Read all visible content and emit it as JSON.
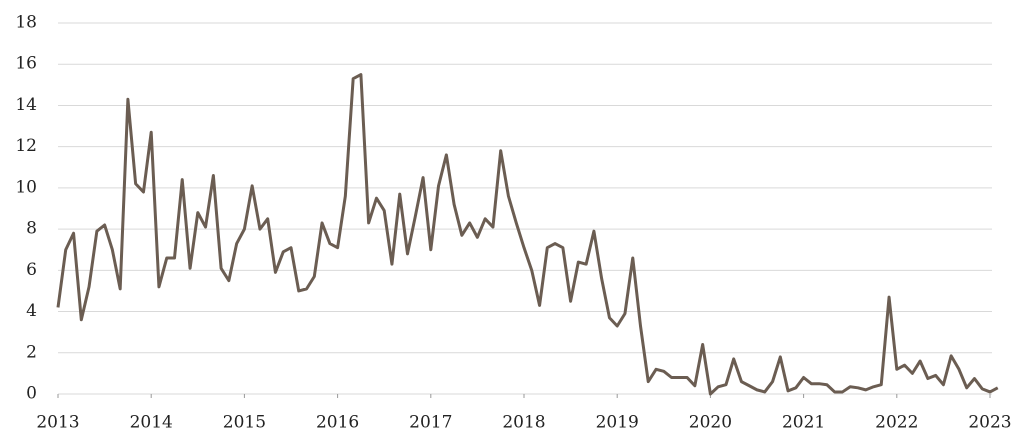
{
  "chart_data": {
    "type": "line",
    "x": [
      2013,
      2013.083,
      2013.167,
      2013.25,
      2013.333,
      2013.417,
      2013.5,
      2013.583,
      2013.667,
      2013.75,
      2013.833,
      2013.917,
      2014,
      2014.083,
      2014.167,
      2014.25,
      2014.333,
      2014.417,
      2014.5,
      2014.583,
      2014.667,
      2014.75,
      2014.833,
      2014.917,
      2015,
      2015.083,
      2015.167,
      2015.25,
      2015.333,
      2015.417,
      2015.5,
      2015.583,
      2015.667,
      2015.75,
      2015.833,
      2015.917,
      2016,
      2016.083,
      2016.167,
      2016.25,
      2016.333,
      2016.417,
      2016.5,
      2016.583,
      2016.667,
      2016.75,
      2016.833,
      2016.917,
      2017,
      2017.083,
      2017.167,
      2017.25,
      2017.333,
      2017.417,
      2017.5,
      2017.583,
      2017.667,
      2017.75,
      2017.833,
      2017.917,
      2018,
      2018.083,
      2018.167,
      2018.25,
      2018.333,
      2018.417,
      2018.5,
      2018.583,
      2018.667,
      2018.75,
      2018.833,
      2018.917,
      2019,
      2019.083,
      2019.167,
      2019.25,
      2019.333,
      2019.417,
      2019.5,
      2019.583,
      2019.667,
      2019.75,
      2019.833,
      2019.917,
      2020,
      2020.083,
      2020.167,
      2020.25,
      2020.333,
      2020.417,
      2020.5,
      2020.583,
      2020.667,
      2020.75,
      2020.833,
      2020.917,
      2021,
      2021.083,
      2021.167,
      2021.25,
      2021.333,
      2021.417,
      2021.5,
      2021.583,
      2021.667,
      2021.75,
      2021.833,
      2021.917,
      2022,
      2022.083,
      2022.167,
      2022.25,
      2022.333,
      2022.417,
      2022.5,
      2022.583,
      2022.667,
      2022.75,
      2022.833,
      2022.917,
      2023,
      2023.083
    ],
    "series": [
      {
        "color": "#6b5d52",
        "values": [
          4.2,
          7.0,
          7.8,
          3.6,
          5.2,
          7.9,
          8.2,
          7.0,
          5.1,
          14.3,
          10.2,
          9.8,
          12.7,
          5.2,
          6.6,
          6.6,
          10.4,
          6.1,
          8.8,
          8.1,
          10.6,
          6.1,
          5.5,
          7.3,
          8.0,
          10.1,
          8.0,
          8.5,
          5.9,
          6.9,
          7.1,
          5.0,
          5.1,
          5.7,
          8.3,
          7.3,
          7.1,
          9.6,
          15.3,
          15.5,
          8.3,
          9.5,
          8.9,
          6.3,
          9.7,
          6.8,
          8.6,
          10.5,
          7.0,
          10.1,
          11.6,
          9.2,
          7.7,
          8.3,
          7.6,
          8.5,
          8.1,
          11.8,
          9.6,
          8.3,
          7.1,
          6.0,
          4.3,
          7.1,
          7.3,
          7.1,
          4.5,
          6.4,
          6.3,
          7.9,
          5.6,
          3.7,
          3.3,
          3.9,
          6.6,
          3.3,
          0.6,
          1.2,
          1.1,
          0.8,
          0.8,
          0.8,
          0.4,
          2.4,
          0.0,
          0.35,
          0.45,
          1.7,
          0.6,
          0.4,
          0.2,
          0.1,
          0.6,
          1.8,
          0.15,
          0.3,
          0.8,
          0.5,
          0.5,
          0.45,
          0.1,
          0.1,
          0.35,
          0.3,
          0.2,
          0.35,
          0.45,
          4.7,
          1.2,
          1.4,
          1.0,
          1.6,
          0.75,
          0.9,
          0.45,
          1.85,
          1.2,
          0.3,
          0.75,
          0.25,
          0.1,
          0.3
        ]
      }
    ],
    "xlim": [
      2013,
      2023
    ],
    "xticks": [
      2013,
      2014,
      2015,
      2016,
      2017,
      2018,
      2019,
      2020,
      2021,
      2022,
      2023
    ],
    "ylim": [
      0,
      18
    ],
    "yticks": [
      0,
      2,
      4,
      6,
      8,
      10,
      12,
      14,
      16,
      18
    ],
    "grid": true
  }
}
